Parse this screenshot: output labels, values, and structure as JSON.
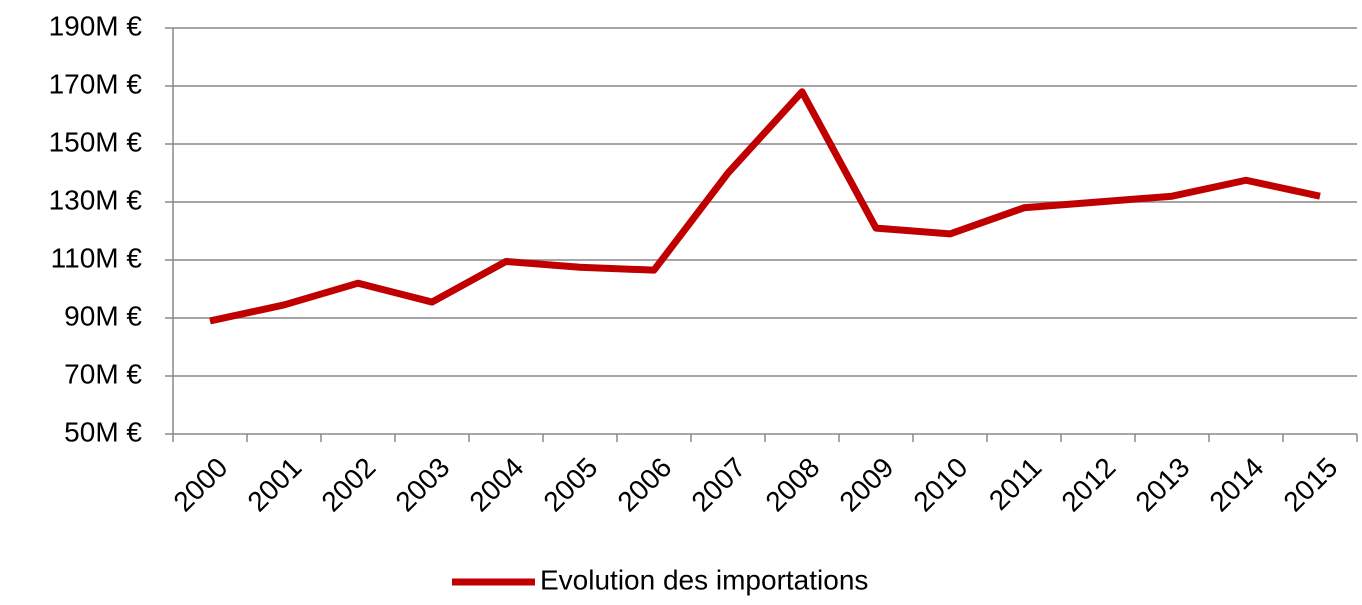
{
  "chart_data": {
    "type": "line",
    "categories": [
      "2000",
      "2001",
      "2002",
      "2003",
      "2004",
      "2005",
      "2006",
      "2007",
      "2008",
      "2009",
      "2010",
      "2011",
      "2012",
      "2013",
      "2014",
      "2015"
    ],
    "series": [
      {
        "name": "Evolution des importations",
        "color": "#c00000",
        "values": [
          89,
          94.5,
          102,
          95.5,
          109.5,
          107.5,
          106.5,
          140,
          168,
          121,
          119,
          128,
          130,
          132,
          137.5,
          132
        ]
      }
    ],
    "ylim": [
      50,
      190
    ],
    "yticks": [
      {
        "value": 50,
        "label": "50M €"
      },
      {
        "value": 70,
        "label": "70M €"
      },
      {
        "value": 90,
        "label": "90M €"
      },
      {
        "value": 110,
        "label": "110M €"
      },
      {
        "value": 130,
        "label": "130M €"
      },
      {
        "value": 150,
        "label": "150M €"
      },
      {
        "value": 170,
        "label": "170M €"
      },
      {
        "value": 190,
        "label": "190M €"
      }
    ],
    "grid": true,
    "legend": "bottom"
  }
}
